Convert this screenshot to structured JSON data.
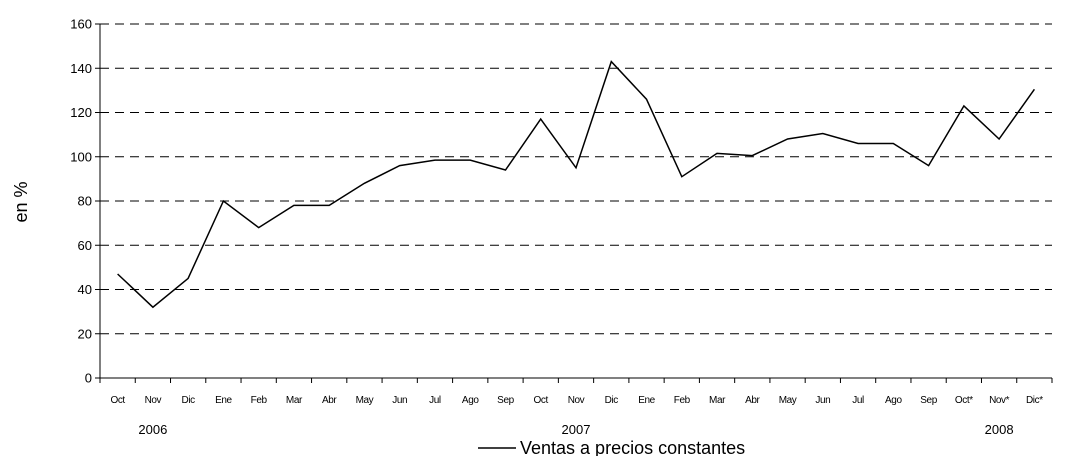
{
  "chart_data": {
    "type": "line",
    "title": "",
    "ylabel": "en %",
    "ylim": [
      0,
      160
    ],
    "yticks": [
      0,
      20,
      40,
      60,
      80,
      100,
      120,
      140,
      160
    ],
    "grid": "horizontal dashed",
    "legend_position": "bottom",
    "categories": [
      "Oct",
      "Nov",
      "Dic",
      "Ene",
      "Feb",
      "Mar",
      "Abr",
      "May",
      "Jun",
      "Jul",
      "Ago",
      "Sep",
      "Oct",
      "Nov",
      "Dic",
      "Ene",
      "Feb",
      "Mar",
      "Abr",
      "May",
      "Jun",
      "Jul",
      "Ago",
      "Sep",
      "Oct*",
      "Nov*",
      "Dic*"
    ],
    "year_labels": [
      {
        "text": "2006",
        "at_category": 1
      },
      {
        "text": "2007",
        "at_category": 13
      },
      {
        "text": "2008",
        "at_category": 25
      }
    ],
    "series": [
      {
        "name": "Ventas a precios constantes",
        "color": "#000000",
        "values": [
          47,
          32,
          45,
          80,
          68,
          78,
          78,
          88,
          96,
          98.5,
          98.5,
          94,
          117,
          95,
          143,
          126,
          91,
          101.5,
          100.5,
          108,
          110.5,
          106,
          106,
          96,
          123,
          108,
          130.5
        ]
      }
    ]
  }
}
